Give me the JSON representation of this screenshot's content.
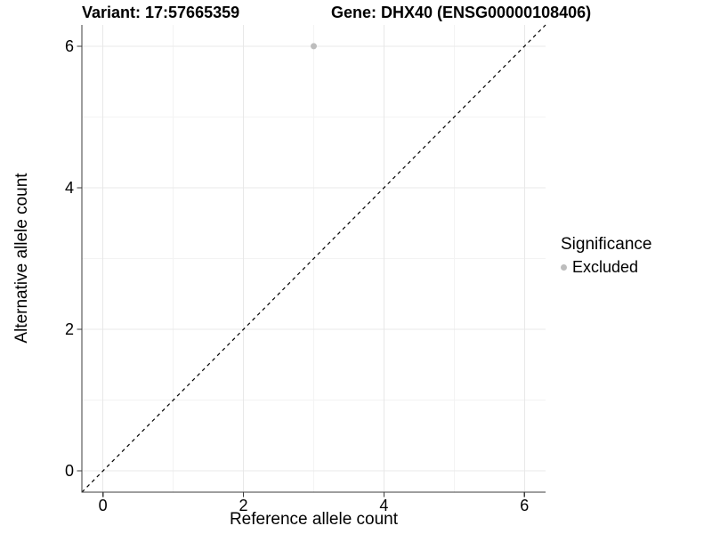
{
  "titles": {
    "variant": "Variant: 17:57665359",
    "gene": "Gene: DHX40 (ENSG00000108406)"
  },
  "axes": {
    "x_label": "Reference allele count",
    "y_label": "Alternative allele count"
  },
  "legend": {
    "title": "Significance",
    "items": [
      {
        "label": "Excluded",
        "color": "#bdbdbd"
      }
    ]
  },
  "chart_data": {
    "type": "scatter",
    "title": "Variant: 17:57665359 | Gene: DHX40 (ENSG00000108406)",
    "xlabel": "Reference allele count",
    "ylabel": "Alternative allele count",
    "xlim": [
      -0.3,
      6.3
    ],
    "ylim": [
      -0.3,
      6.3
    ],
    "x_ticks": [
      0,
      2,
      4,
      6
    ],
    "y_ticks": [
      0,
      2,
      4,
      6
    ],
    "x_minor_ticks": [
      1,
      3,
      5
    ],
    "y_minor_ticks": [
      1,
      3,
      5
    ],
    "grid": "major+minor",
    "legend_position": "right",
    "series": [
      {
        "name": "Excluded",
        "color": "#bdbdbd",
        "marker": "circle",
        "marker_radius": 3.5,
        "points": [
          [
            3,
            6
          ]
        ]
      }
    ],
    "reference_line": {
      "kind": "identity",
      "slope": 1,
      "intercept": 0,
      "linestyle": "dashed",
      "color": "#000000"
    }
  },
  "colors": {
    "background": "#ffffff",
    "grid_major": "#e8e8e8",
    "grid_minor": "#f3f3f3",
    "axis": "#3c3c3c",
    "text": "#000000"
  }
}
